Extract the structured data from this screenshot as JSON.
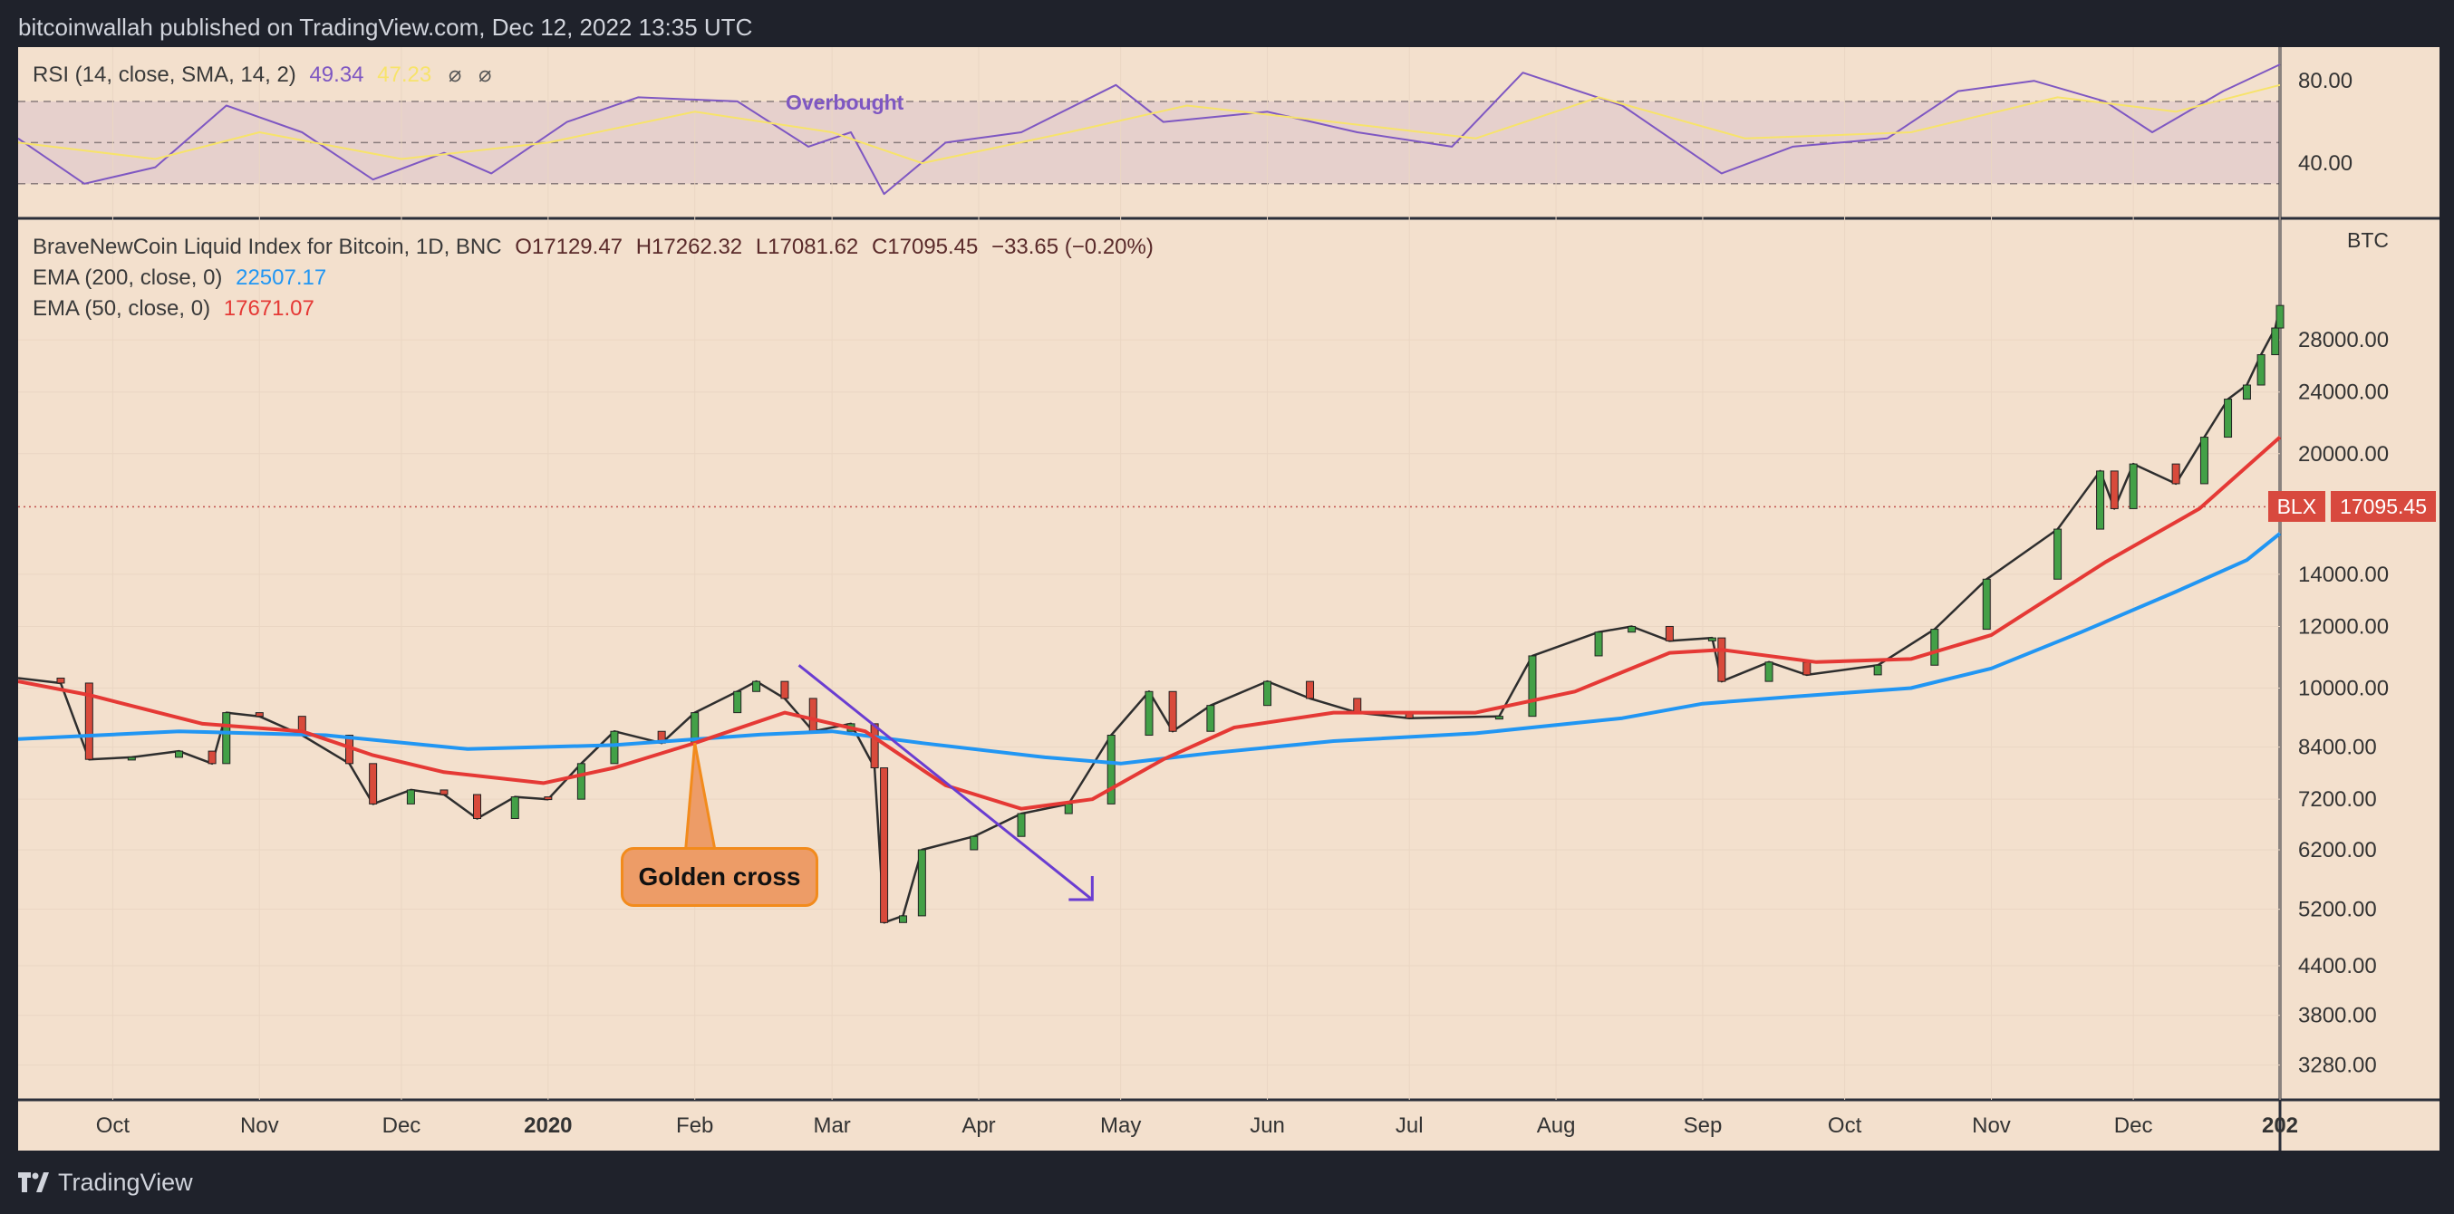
{
  "header": {
    "caption": "bitcoinwallah published on TradingView.com, Dec 12, 2022 13:35 UTC"
  },
  "footer": {
    "brand": "TradingView",
    "logo_icon": "tradingview-logo-icon"
  },
  "rsi": {
    "title": "RSI (14, close, SMA, 14, 2)",
    "value_rsi": "49.34",
    "value_sma": "47.23",
    "symbol_a": "⌀",
    "symbol_b": "⌀",
    "overbought_label": "Overbought",
    "ticks": [
      {
        "value": 80,
        "label": "80.00"
      },
      {
        "value": 40,
        "label": "40.00"
      }
    ],
    "upper_band": 70,
    "mid_band": 50,
    "lower_band": 30
  },
  "main": {
    "title": "BraveNewCoin Liquid Index for Bitcoin, 1D, BNC",
    "open": "O17129.47",
    "high": "H17262.32",
    "low": "L17081.62",
    "close": "C17095.45",
    "change": "−33.65 (−0.20%)",
    "ema200_label": "EMA (200, close, 0)",
    "ema200_value": "22507.17",
    "ema50_label": "EMA (50, close, 0)",
    "ema50_value": "17671.07",
    "currency": "BTC",
    "price_tag_name": "BLX",
    "price_tag_value": "17095.45",
    "callout": "Golden cross"
  },
  "chart_data": {
    "type": "line",
    "scale": "log",
    "x_domain": [
      "2019-09-11",
      "2021-01-01"
    ],
    "y_domain": [
      2960,
      40000
    ],
    "x_ticks": [
      {
        "date": "2019-10-01",
        "label": "Oct",
        "bold": false
      },
      {
        "date": "2019-11-01",
        "label": "Nov",
        "bold": false
      },
      {
        "date": "2019-12-01",
        "label": "Dec",
        "bold": false
      },
      {
        "date": "2020-01-01",
        "label": "2020",
        "bold": true
      },
      {
        "date": "2020-02-01",
        "label": "Feb",
        "bold": false
      },
      {
        "date": "2020-03-01",
        "label": "Mar",
        "bold": false
      },
      {
        "date": "2020-04-01",
        "label": "Apr",
        "bold": false
      },
      {
        "date": "2020-05-01",
        "label": "May",
        "bold": false
      },
      {
        "date": "2020-06-01",
        "label": "Jun",
        "bold": false
      },
      {
        "date": "2020-07-01",
        "label": "Jul",
        "bold": false
      },
      {
        "date": "2020-08-01",
        "label": "Aug",
        "bold": false
      },
      {
        "date": "2020-09-01",
        "label": "Sep",
        "bold": false
      },
      {
        "date": "2020-10-01",
        "label": "Oct",
        "bold": false
      },
      {
        "date": "2020-11-01",
        "label": "Nov",
        "bold": false
      },
      {
        "date": "2020-12-01",
        "label": "Dec",
        "bold": false
      },
      {
        "date": "2021-01-01",
        "label": "202",
        "bold": true
      }
    ],
    "y_ticks": [
      {
        "value": 28000,
        "label": "28000.00"
      },
      {
        "value": 24000,
        "label": "24000.00"
      },
      {
        "value": 20000,
        "label": "20000.00"
      },
      {
        "value": 14000,
        "label": "14000.00"
      },
      {
        "value": 12000,
        "label": "12000.00"
      },
      {
        "value": 10000,
        "label": "10000.00"
      },
      {
        "value": 8400,
        "label": "8400.00"
      },
      {
        "value": 7200,
        "label": "7200.00"
      },
      {
        "value": 6200,
        "label": "6200.00"
      },
      {
        "value": 5200,
        "label": "5200.00"
      },
      {
        "value": 4400,
        "label": "4400.00"
      },
      {
        "value": 3800,
        "label": "3800.00"
      },
      {
        "value": 3280,
        "label": "3280.00"
      }
    ],
    "last_price": 17095.45,
    "series": [
      {
        "name": "BraveNewCoin Liquid Index for Bitcoin, 1D, BNC",
        "kind": "price",
        "color": "#2e2e2e",
        "points": [
          [
            "2019-09-11",
            10300
          ],
          [
            "2019-09-20",
            10150
          ],
          [
            "2019-09-26",
            8100
          ],
          [
            "2019-10-05",
            8150
          ],
          [
            "2019-10-15",
            8300
          ],
          [
            "2019-10-22",
            8000
          ],
          [
            "2019-10-25",
            9300
          ],
          [
            "2019-11-01",
            9200
          ],
          [
            "2019-11-10",
            8700
          ],
          [
            "2019-11-20",
            8000
          ],
          [
            "2019-11-25",
            7100
          ],
          [
            "2019-12-03",
            7400
          ],
          [
            "2019-12-10",
            7300
          ],
          [
            "2019-12-17",
            6800
          ],
          [
            "2019-12-25",
            7250
          ],
          [
            "2020-01-01",
            7200
          ],
          [
            "2020-01-08",
            8000
          ],
          [
            "2020-01-15",
            8800
          ],
          [
            "2020-01-25",
            8500
          ],
          [
            "2020-02-01",
            9300
          ],
          [
            "2020-02-10",
            9900
          ],
          [
            "2020-02-14",
            10200
          ],
          [
            "2020-02-20",
            9700
          ],
          [
            "2020-02-26",
            8800
          ],
          [
            "2020-03-05",
            9000
          ],
          [
            "2020-03-10",
            7900
          ],
          [
            "2020-03-12",
            5000
          ],
          [
            "2020-03-16",
            5100
          ],
          [
            "2020-03-20",
            6200
          ],
          [
            "2020-03-31",
            6450
          ],
          [
            "2020-04-10",
            6900
          ],
          [
            "2020-04-20",
            7100
          ],
          [
            "2020-04-29",
            8700
          ],
          [
            "2020-05-07",
            9900
          ],
          [
            "2020-05-12",
            8800
          ],
          [
            "2020-05-20",
            9500
          ],
          [
            "2020-06-01",
            10200
          ],
          [
            "2020-06-10",
            9700
          ],
          [
            "2020-06-20",
            9300
          ],
          [
            "2020-07-01",
            9150
          ],
          [
            "2020-07-20",
            9200
          ],
          [
            "2020-07-27",
            11000
          ],
          [
            "2020-08-10",
            11800
          ],
          [
            "2020-08-17",
            12000
          ],
          [
            "2020-08-25",
            11500
          ],
          [
            "2020-09-03",
            11600
          ],
          [
            "2020-09-05",
            10200
          ],
          [
            "2020-09-15",
            10800
          ],
          [
            "2020-09-23",
            10400
          ],
          [
            "2020-10-08",
            10700
          ],
          [
            "2020-10-20",
            11900
          ],
          [
            "2020-10-31",
            13800
          ],
          [
            "2020-11-15",
            16000
          ],
          [
            "2020-11-24",
            19000
          ],
          [
            "2020-11-27",
            17000
          ],
          [
            "2020-12-01",
            19400
          ],
          [
            "2020-12-10",
            18300
          ],
          [
            "2020-12-16",
            21000
          ],
          [
            "2020-12-21",
            23500
          ],
          [
            "2020-12-25",
            24500
          ],
          [
            "2020-12-28",
            26800
          ],
          [
            "2020-12-31",
            29000
          ],
          [
            "2021-01-01",
            31000
          ]
        ]
      },
      {
        "name": "EMA (200, close, 0)",
        "kind": "ema200",
        "color": "#2196f3",
        "points": [
          [
            "2019-09-11",
            8600
          ],
          [
            "2019-10-15",
            8800
          ],
          [
            "2019-11-15",
            8700
          ],
          [
            "2019-12-15",
            8350
          ],
          [
            "2020-01-15",
            8450
          ],
          [
            "2020-02-15",
            8720
          ],
          [
            "2020-03-01",
            8800
          ],
          [
            "2020-03-20",
            8500
          ],
          [
            "2020-04-15",
            8150
          ],
          [
            "2020-05-01",
            8000
          ],
          [
            "2020-05-20",
            8250
          ],
          [
            "2020-06-15",
            8550
          ],
          [
            "2020-07-15",
            8750
          ],
          [
            "2020-08-15",
            9150
          ],
          [
            "2020-09-01",
            9550
          ],
          [
            "2020-09-20",
            9750
          ],
          [
            "2020-10-15",
            10000
          ],
          [
            "2020-11-01",
            10600
          ],
          [
            "2020-11-20",
            11800
          ],
          [
            "2020-12-10",
            13300
          ],
          [
            "2020-12-25",
            14600
          ],
          [
            "2021-01-01",
            15800
          ]
        ]
      },
      {
        "name": "EMA (50, close, 0)",
        "kind": "ema50",
        "color": "#e53935",
        "points": [
          [
            "2019-09-11",
            10200
          ],
          [
            "2019-09-26",
            9800
          ],
          [
            "2019-10-20",
            9000
          ],
          [
            "2019-11-10",
            8800
          ],
          [
            "2019-11-25",
            8200
          ],
          [
            "2019-12-10",
            7800
          ],
          [
            "2019-12-31",
            7550
          ],
          [
            "2020-01-15",
            7900
          ],
          [
            "2020-02-01",
            8500
          ],
          [
            "2020-02-20",
            9300
          ],
          [
            "2020-03-08",
            8800
          ],
          [
            "2020-03-25",
            7500
          ],
          [
            "2020-04-10",
            7000
          ],
          [
            "2020-04-25",
            7200
          ],
          [
            "2020-05-10",
            8100
          ],
          [
            "2020-05-25",
            8900
          ],
          [
            "2020-06-15",
            9300
          ],
          [
            "2020-07-15",
            9300
          ],
          [
            "2020-08-05",
            9900
          ],
          [
            "2020-08-25",
            11100
          ],
          [
            "2020-09-05",
            11200
          ],
          [
            "2020-09-25",
            10800
          ],
          [
            "2020-10-15",
            10900
          ],
          [
            "2020-11-01",
            11700
          ],
          [
            "2020-11-25",
            14500
          ],
          [
            "2020-12-15",
            17000
          ],
          [
            "2021-01-01",
            21000
          ]
        ]
      },
      {
        "name": "RSI",
        "kind": "rsi",
        "color": "#7e57c2",
        "points": [
          [
            "2019-09-11",
            52
          ],
          [
            "2019-09-25",
            30
          ],
          [
            "2019-10-10",
            38
          ],
          [
            "2019-10-25",
            68
          ],
          [
            "2019-11-10",
            55
          ],
          [
            "2019-11-25",
            32
          ],
          [
            "2019-12-10",
            45
          ],
          [
            "2019-12-20",
            35
          ],
          [
            "2020-01-05",
            60
          ],
          [
            "2020-01-20",
            72
          ],
          [
            "2020-02-10",
            70
          ],
          [
            "2020-02-25",
            48
          ],
          [
            "2020-03-05",
            55
          ],
          [
            "2020-03-12",
            25
          ],
          [
            "2020-03-25",
            50
          ],
          [
            "2020-04-10",
            55
          ],
          [
            "2020-04-30",
            78
          ],
          [
            "2020-05-10",
            60
          ],
          [
            "2020-06-01",
            65
          ],
          [
            "2020-06-20",
            55
          ],
          [
            "2020-07-10",
            48
          ],
          [
            "2020-07-25",
            84
          ],
          [
            "2020-08-15",
            68
          ],
          [
            "2020-09-05",
            35
          ],
          [
            "2020-09-20",
            48
          ],
          [
            "2020-10-10",
            52
          ],
          [
            "2020-10-25",
            75
          ],
          [
            "2020-11-10",
            80
          ],
          [
            "2020-11-25",
            70
          ],
          [
            "2020-12-05",
            55
          ],
          [
            "2020-12-20",
            75
          ],
          [
            "2021-01-01",
            88
          ]
        ]
      },
      {
        "name": "RSI SMA",
        "kind": "rsi_sma",
        "color": "#f7e36b",
        "points": [
          [
            "2019-09-11",
            50
          ],
          [
            "2019-10-10",
            42
          ],
          [
            "2019-11-01",
            55
          ],
          [
            "2019-12-01",
            42
          ],
          [
            "2020-01-01",
            50
          ],
          [
            "2020-02-01",
            65
          ],
          [
            "2020-03-01",
            55
          ],
          [
            "2020-03-20",
            40
          ],
          [
            "2020-04-20",
            55
          ],
          [
            "2020-05-15",
            68
          ],
          [
            "2020-06-15",
            60
          ],
          [
            "2020-07-15",
            52
          ],
          [
            "2020-08-10",
            72
          ],
          [
            "2020-09-10",
            52
          ],
          [
            "2020-10-15",
            55
          ],
          [
            "2020-11-15",
            72
          ],
          [
            "2020-12-10",
            65
          ],
          [
            "2021-01-01",
            78
          ]
        ]
      }
    ],
    "annotations": [
      {
        "type": "arrow",
        "from": [
          "2020-02-23",
          10700
        ],
        "to": [
          "2020-04-25",
          5350
        ],
        "color": "#6a3dd1"
      },
      {
        "type": "callout",
        "anchor": [
          "2020-02-01",
          8500
        ],
        "text": "Golden cross",
        "fill": "#ed9c67",
        "stroke": "#f28b1c"
      }
    ]
  }
}
